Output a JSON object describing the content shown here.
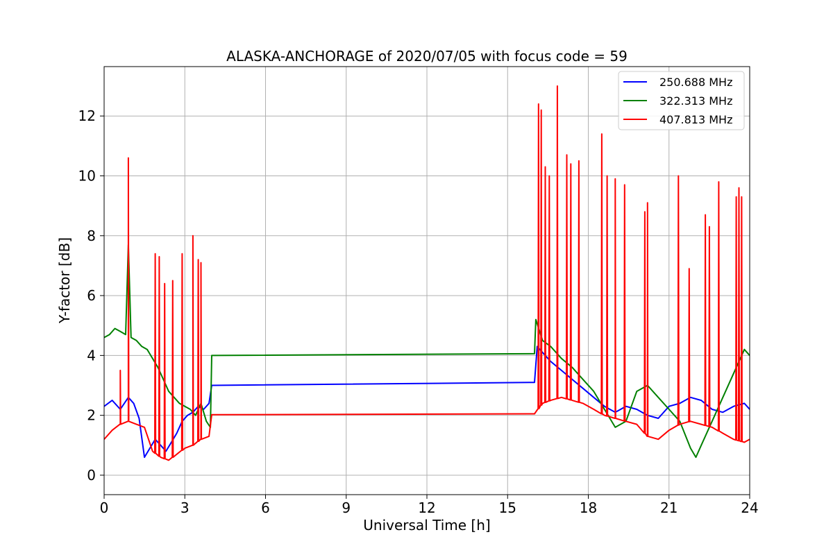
{
  "chart_data": {
    "type": "line",
    "title": "ALASKA-ANCHORAGE of 2020/07/05 with focus code = 59",
    "xlabel": "Universal Time [h]",
    "ylabel": "Y-factor [dB]",
    "xlim": [
      0,
      24
    ],
    "ylim": [
      -0.65,
      13.65
    ],
    "xticks": [
      0,
      3,
      6,
      9,
      12,
      15,
      18,
      21,
      24
    ],
    "xtick_labels": [
      "0",
      "3",
      "6",
      "9",
      "12",
      "15",
      "18",
      "21",
      "24"
    ],
    "yticks": [
      0,
      2,
      4,
      6,
      8,
      10,
      12
    ],
    "ytick_labels": [
      "0",
      "2",
      "4",
      "6",
      "8",
      "10",
      "12"
    ],
    "grid": true,
    "legend_position": "top-right",
    "colors": {
      "blue": "#0000ff",
      "green": "#008000",
      "red": "#ff0000"
    },
    "series": [
      {
        "name": "250.688 MHz",
        "color": "#0000ff",
        "x": [
          0,
          0.3,
          0.6,
          0.9,
          1.1,
          1.3,
          1.5,
          1.7,
          1.9,
          2.1,
          2.3,
          2.5,
          2.7,
          2.9,
          3.1,
          3.3,
          3.5,
          3.7,
          3.9,
          4.0,
          16.0,
          16.1,
          16.3,
          16.6,
          17.0,
          17.4,
          17.8,
          18.2,
          18.6,
          19.0,
          19.4,
          19.8,
          20.2,
          20.6,
          21.0,
          21.4,
          21.8,
          22.2,
          22.6,
          23.0,
          23.4,
          23.8,
          24.0
        ],
        "y": [
          2.3,
          2.5,
          2.2,
          2.6,
          2.4,
          1.9,
          0.6,
          0.9,
          1.2,
          1.0,
          0.8,
          1.1,
          1.4,
          1.8,
          2.0,
          2.1,
          2.3,
          2.2,
          2.4,
          3.0,
          3.1,
          4.3,
          4.1,
          3.8,
          3.5,
          3.2,
          2.9,
          2.6,
          2.3,
          2.1,
          2.3,
          2.2,
          2.0,
          1.9,
          2.3,
          2.4,
          2.6,
          2.5,
          2.2,
          2.1,
          2.3,
          2.4,
          2.2
        ]
      },
      {
        "name": "322.313 MHz",
        "color": "#008000",
        "x": [
          0,
          0.2,
          0.4,
          0.6,
          0.8,
          0.9,
          1.0,
          1.2,
          1.4,
          1.6,
          1.8,
          2.0,
          2.2,
          2.4,
          2.6,
          2.8,
          3.0,
          3.2,
          3.4,
          3.6,
          3.8,
          3.95,
          4.0,
          16.0,
          16.05,
          16.3,
          16.6,
          17.0,
          17.4,
          17.8,
          18.2,
          18.6,
          19.0,
          19.4,
          19.8,
          20.2,
          20.6,
          21.0,
          21.4,
          21.8,
          22.0,
          22.2,
          22.6,
          23.0,
          23.4,
          23.8,
          24.0
        ],
        "y": [
          4.6,
          4.7,
          4.9,
          4.8,
          4.7,
          7.7,
          4.6,
          4.5,
          4.3,
          4.2,
          3.9,
          3.6,
          3.2,
          2.8,
          2.6,
          2.4,
          2.3,
          2.2,
          2.0,
          2.4,
          1.8,
          1.6,
          4.0,
          4.06,
          5.2,
          4.5,
          4.3,
          3.9,
          3.6,
          3.2,
          2.8,
          2.2,
          1.6,
          1.8,
          2.8,
          3.0,
          2.6,
          2.2,
          1.8,
          0.9,
          0.6,
          1.0,
          1.8,
          2.6,
          3.4,
          4.2,
          4.0
        ]
      },
      {
        "name": "407.813 MHz",
        "color": "#ff0000",
        "x": [
          0,
          0.3,
          0.6,
          0.9,
          1.2,
          1.5,
          1.8,
          2.1,
          2.4,
          2.7,
          3.0,
          3.3,
          3.6,
          3.9,
          4.0,
          16.0,
          16.3,
          16.6,
          17.0,
          17.4,
          17.8,
          18.2,
          18.6,
          19.0,
          19.4,
          19.8,
          20.2,
          20.6,
          21.0,
          21.4,
          21.8,
          22.2,
          22.6,
          23.0,
          23.4,
          23.8,
          24.0
        ],
        "y": [
          1.2,
          1.5,
          1.7,
          1.8,
          1.7,
          1.6,
          0.8,
          0.6,
          0.5,
          0.7,
          0.9,
          1.0,
          1.2,
          1.3,
          2.02,
          2.05,
          2.4,
          2.5,
          2.6,
          2.5,
          2.4,
          2.2,
          2.0,
          1.9,
          1.8,
          1.7,
          1.3,
          1.2,
          1.5,
          1.7,
          1.8,
          1.7,
          1.6,
          1.4,
          1.2,
          1.1,
          1.2
        ],
        "spikes": [
          {
            "x": 0.6,
            "y": 3.5
          },
          {
            "x": 0.9,
            "y": 10.6
          },
          {
            "x": 1.9,
            "y": 7.4
          },
          {
            "x": 2.05,
            "y": 7.3
          },
          {
            "x": 2.25,
            "y": 6.4
          },
          {
            "x": 2.55,
            "y": 6.5
          },
          {
            "x": 2.9,
            "y": 7.4
          },
          {
            "x": 3.3,
            "y": 8.0
          },
          {
            "x": 3.5,
            "y": 7.2
          },
          {
            "x": 3.6,
            "y": 7.1
          },
          {
            "x": 16.15,
            "y": 12.4
          },
          {
            "x": 16.25,
            "y": 12.2
          },
          {
            "x": 16.4,
            "y": 10.3
          },
          {
            "x": 16.55,
            "y": 10.0
          },
          {
            "x": 16.85,
            "y": 13.0
          },
          {
            "x": 17.2,
            "y": 10.7
          },
          {
            "x": 17.35,
            "y": 10.4
          },
          {
            "x": 17.65,
            "y": 10.5
          },
          {
            "x": 18.5,
            "y": 11.4
          },
          {
            "x": 18.7,
            "y": 10.0
          },
          {
            "x": 19.0,
            "y": 9.9
          },
          {
            "x": 19.35,
            "y": 9.7
          },
          {
            "x": 20.1,
            "y": 8.8
          },
          {
            "x": 20.2,
            "y": 9.1
          },
          {
            "x": 21.35,
            "y": 10.0
          },
          {
            "x": 21.75,
            "y": 6.9
          },
          {
            "x": 22.35,
            "y": 8.7
          },
          {
            "x": 22.5,
            "y": 8.3
          },
          {
            "x": 22.85,
            "y": 9.8
          },
          {
            "x": 23.5,
            "y": 9.3
          },
          {
            "x": 23.6,
            "y": 9.6
          },
          {
            "x": 23.7,
            "y": 9.3
          }
        ]
      }
    ]
  }
}
